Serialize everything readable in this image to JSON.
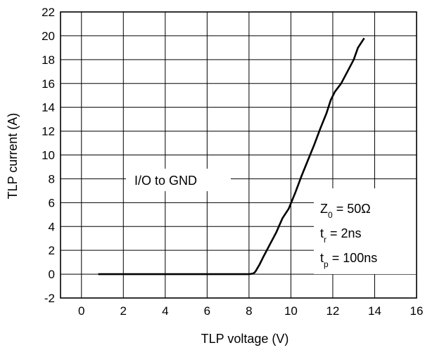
{
  "chart_data": {
    "type": "line",
    "title": "",
    "xlabel": "TLP voltage (V)",
    "ylabel": "TLP current (A)",
    "xlim": [
      -1,
      16
    ],
    "ylim": [
      -2,
      22
    ],
    "xticks": [
      0,
      2,
      4,
      6,
      8,
      10,
      12,
      14,
      16
    ],
    "yticks": [
      -2,
      0,
      2,
      4,
      6,
      8,
      10,
      12,
      14,
      16,
      18,
      20,
      22
    ],
    "grid": true,
    "series": [
      {
        "x": [
          0.8,
          2.0,
          4.0,
          6.0,
          8.0,
          8.2,
          8.3,
          8.5,
          8.7,
          9.0,
          9.3,
          9.6,
          9.9,
          10.2,
          10.5,
          10.8,
          11.1,
          11.4,
          11.7,
          11.9,
          12.1,
          12.4,
          12.7,
          13.0,
          13.2,
          13.5
        ],
        "y": [
          0,
          0,
          0,
          0,
          0,
          0.05,
          0.2,
          0.8,
          1.5,
          2.5,
          3.5,
          4.7,
          5.5,
          6.8,
          8.2,
          9.5,
          10.8,
          12.2,
          13.5,
          14.6,
          15.3,
          16.0,
          17.0,
          18.0,
          19.0,
          19.8
        ]
      }
    ],
    "annotations": {
      "condition": "I/O to GND",
      "z0_main": "Z",
      "z0_sub": "0",
      "z0_rest": " = 50Ω",
      "tr_main": "t",
      "tr_sub": "r",
      "tr_rest": " = 2ns",
      "tp_main": "t",
      "tp_sub": "p",
      "tp_rest": " = 100ns"
    }
  }
}
